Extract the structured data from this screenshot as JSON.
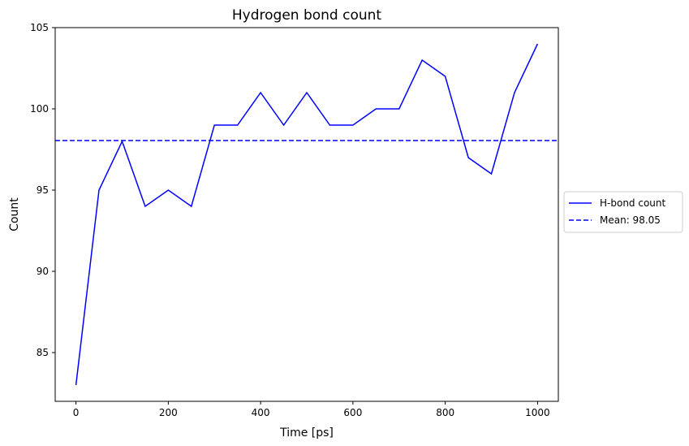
{
  "chart_data": {
    "type": "line",
    "title": "Hydrogen bond count",
    "xlabel": "Time [ps]",
    "ylabel": "Count",
    "xlim": [
      -45,
      1045
    ],
    "ylim": [
      82,
      105
    ],
    "x_ticks": [
      0,
      200,
      400,
      600,
      800,
      1000
    ],
    "y_ticks": [
      85,
      90,
      95,
      100,
      105
    ],
    "grid": false,
    "legend_position": "right-outside",
    "series": [
      {
        "name": "H-bond count",
        "color": "#0000ff",
        "style": "solid",
        "x": [
          0,
          50,
          100,
          150,
          200,
          250,
          300,
          350,
          400,
          450,
          500,
          550,
          600,
          650,
          700,
          750,
          800,
          850,
          900,
          950,
          1000
        ],
        "values": [
          83,
          95,
          98,
          94,
          95,
          94,
          99,
          99,
          101,
          99,
          101,
          99,
          99,
          100,
          100,
          103,
          102,
          97,
          96,
          101,
          104
        ]
      }
    ],
    "reference_lines": [
      {
        "name": "Mean: 98.05",
        "orientation": "horizontal",
        "value": 98.05,
        "color": "#0000ff",
        "style": "dashed"
      }
    ]
  }
}
